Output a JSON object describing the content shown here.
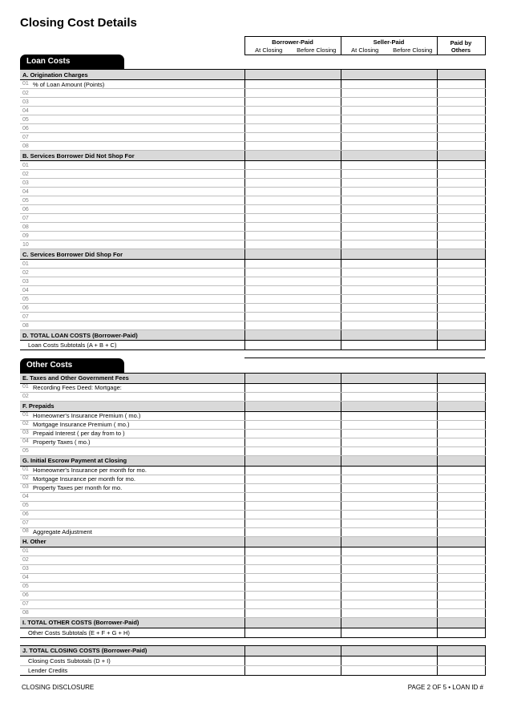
{
  "title": "Closing Cost Details",
  "columns": {
    "borrower_paid": "Borrower-Paid",
    "seller_paid": "Seller-Paid",
    "paid_by_others": "Paid by\nOthers",
    "at_closing": "At Closing",
    "before_closing": "Before Closing"
  },
  "sections": {
    "loan_costs": {
      "pill": "Loan Costs",
      "a": {
        "header": "A. Origination Charges",
        "lines": [
          "% of Loan Amount (Points)",
          "",
          "",
          "",
          "",
          "",
          "",
          ""
        ]
      },
      "b": {
        "header": "B. Services Borrower Did Not Shop For",
        "lines": [
          "",
          "",
          "",
          "",
          "",
          "",
          "",
          "",
          "",
          ""
        ]
      },
      "c": {
        "header": "C. Services Borrower Did Shop For",
        "lines": [
          "",
          "",
          "",
          "",
          "",
          "",
          "",
          ""
        ]
      },
      "d": {
        "header": "D. TOTAL LOAN COSTS (Borrower-Paid)",
        "subtotal": "Loan Costs Subtotals (A + B + C)"
      }
    },
    "other_costs": {
      "pill": "Other Costs",
      "e": {
        "header": "E. Taxes and Other Government Fees",
        "lines": [
          "Recording Fees               Deed:                Mortgage:",
          ""
        ]
      },
      "f": {
        "header": "F. Prepaids",
        "lines": [
          "Homeowner's Insurance Premium  (     mo.)",
          "Mortgage Insurance Premium  (     mo.)",
          "Prepaid Interest  (          per day from             to            )",
          "Property Taxes  (     mo.)",
          ""
        ]
      },
      "g": {
        "header": "G. Initial Escrow Payment at Closing",
        "lines": [
          "Homeowner's Insurance            per month for     mo.",
          "Mortgage Insurance                   per month for     mo.",
          "Property Taxes                            per month for     mo.",
          "",
          "",
          "",
          "",
          "Aggregate Adjustment"
        ]
      },
      "h": {
        "header": "H. Other",
        "lines": [
          "",
          "",
          "",
          "",
          "",
          "",
          "",
          ""
        ]
      },
      "i": {
        "header": "I. TOTAL OTHER COSTS (Borrower-Paid)",
        "subtotal": "Other Costs Subtotals (E + F + G + H)"
      },
      "j": {
        "header": "J. TOTAL CLOSING COSTS (Borrower-Paid)",
        "sub1": "Closing Costs Subtotals (D + I)",
        "sub2": "Lender Credits"
      }
    }
  },
  "footer": {
    "left": "CLOSING DISCLOSURE",
    "right": "PAGE 2 OF 5 • LOAN ID #"
  },
  "colors": {
    "section_bg": "#d9d9d9",
    "line_border": "#bfbfbf",
    "rule": "#000000",
    "num_color": "#808080"
  }
}
